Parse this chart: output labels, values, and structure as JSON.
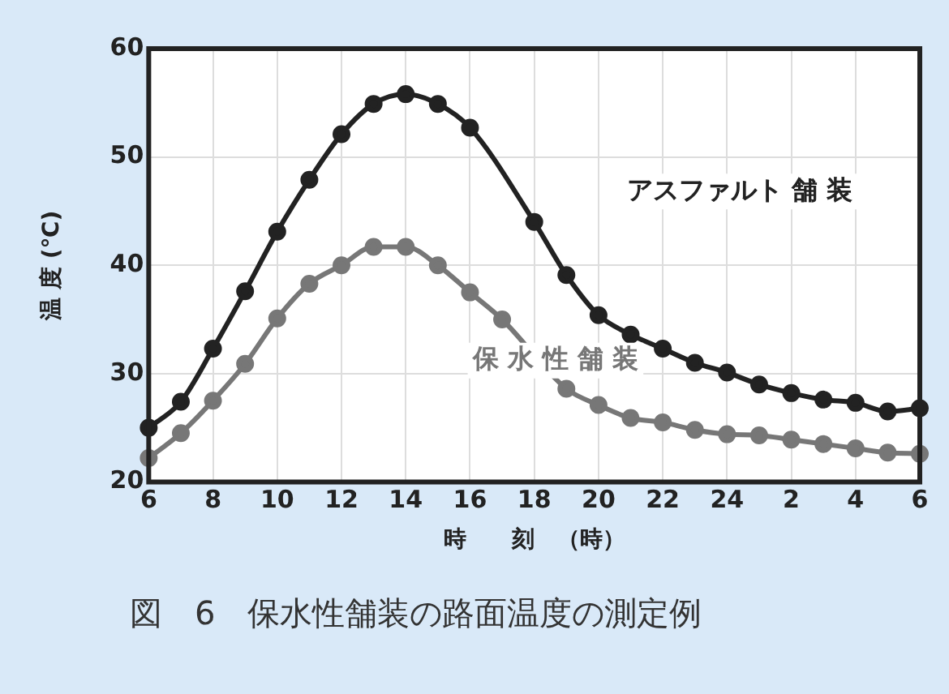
{
  "chart_data": {
    "type": "line",
    "title": "図　6　保水性舗装の路面温度の測定例",
    "xlabel": "時　　刻　（時）",
    "ylabel": "温 度 (℃)",
    "categories": [
      "6",
      null,
      "8",
      null,
      "10",
      null,
      "12",
      null,
      "14",
      null,
      "16",
      null,
      "18",
      null,
      "20",
      null,
      "22",
      null,
      "24",
      null,
      "2",
      null,
      "4",
      null,
      "6"
    ],
    "series": [
      {
        "name": "アスファルト 舗 装",
        "color": "#222222",
        "values": [
          25.0,
          27.4,
          32.3,
          37.6,
          43.1,
          47.9,
          52.1,
          54.9,
          55.8,
          54.9,
          52.7,
          null,
          44.0,
          39.1,
          35.4,
          33.6,
          32.3,
          31.0,
          30.1,
          29.0,
          28.2,
          27.6,
          27.3,
          26.5,
          26.8
        ]
      },
      {
        "name": "保 水 性 舗 装",
        "color": "#777777",
        "values": [
          22.2,
          24.5,
          27.5,
          30.9,
          35.1,
          38.3,
          40.0,
          41.7,
          41.7,
          40.0,
          37.5,
          35.0,
          null,
          28.6,
          27.1,
          25.9,
          25.5,
          24.8,
          24.4,
          24.3,
          23.9,
          23.5,
          23.1,
          22.7,
          22.6
        ]
      }
    ],
    "ylim": [
      20,
      60
    ],
    "yticks": [
      20,
      30,
      40,
      50,
      60
    ],
    "grid": true,
    "legend": false,
    "marker": "circle",
    "line_style": "solid"
  }
}
